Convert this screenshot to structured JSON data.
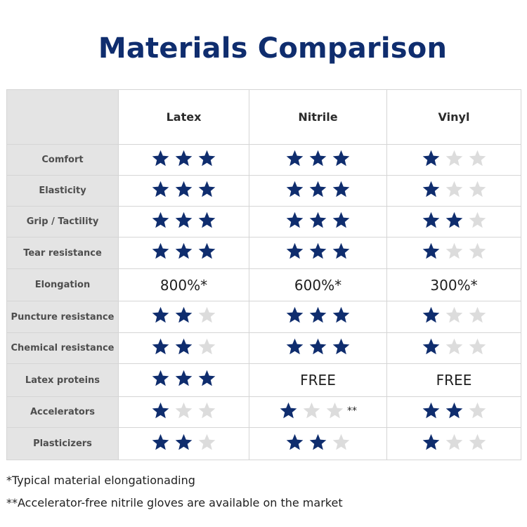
{
  "title": "Materials Comparison",
  "colors": {
    "star_filled": "#0f2d6e",
    "star_empty": "#dcdcdc"
  },
  "columns": [
    "Latex",
    "Nitrile",
    "Vinyl"
  ],
  "rows": [
    {
      "label": "Comfort",
      "cells": [
        {
          "stars": 3
        },
        {
          "stars": 3
        },
        {
          "stars": 1
        }
      ]
    },
    {
      "label": "Elasticity",
      "cells": [
        {
          "stars": 3
        },
        {
          "stars": 3
        },
        {
          "stars": 1
        }
      ]
    },
    {
      "label": "Grip / Tactility",
      "cells": [
        {
          "stars": 3
        },
        {
          "stars": 3
        },
        {
          "stars": 2
        }
      ]
    },
    {
      "label": "Tear resistance",
      "cells": [
        {
          "stars": 3
        },
        {
          "stars": 3
        },
        {
          "stars": 1
        }
      ]
    },
    {
      "label": "Elongation",
      "cells": [
        {
          "text": "800%*"
        },
        {
          "text": "600%*"
        },
        {
          "text": "300%*"
        }
      ]
    },
    {
      "label": "Puncture resistance",
      "cells": [
        {
          "stars": 2
        },
        {
          "stars": 3
        },
        {
          "stars": 1
        }
      ]
    },
    {
      "label": "Chemical resistance",
      "cells": [
        {
          "stars": 2
        },
        {
          "stars": 3
        },
        {
          "stars": 1
        }
      ]
    },
    {
      "label": "Latex proteins",
      "cells": [
        {
          "stars": 3
        },
        {
          "text": "FREE"
        },
        {
          "text": "FREE"
        }
      ]
    },
    {
      "label": "Accelerators",
      "cells": [
        {
          "stars": 1
        },
        {
          "stars": 1,
          "mark": "**"
        },
        {
          "stars": 2
        }
      ]
    },
    {
      "label": "Plasticizers",
      "cells": [
        {
          "stars": 2
        },
        {
          "stars": 2
        },
        {
          "stars": 1
        }
      ]
    }
  ],
  "footnotes": [
    "*Typical material elongationading",
    "**Accelerator-free nitrile gloves are available on the market"
  ]
}
